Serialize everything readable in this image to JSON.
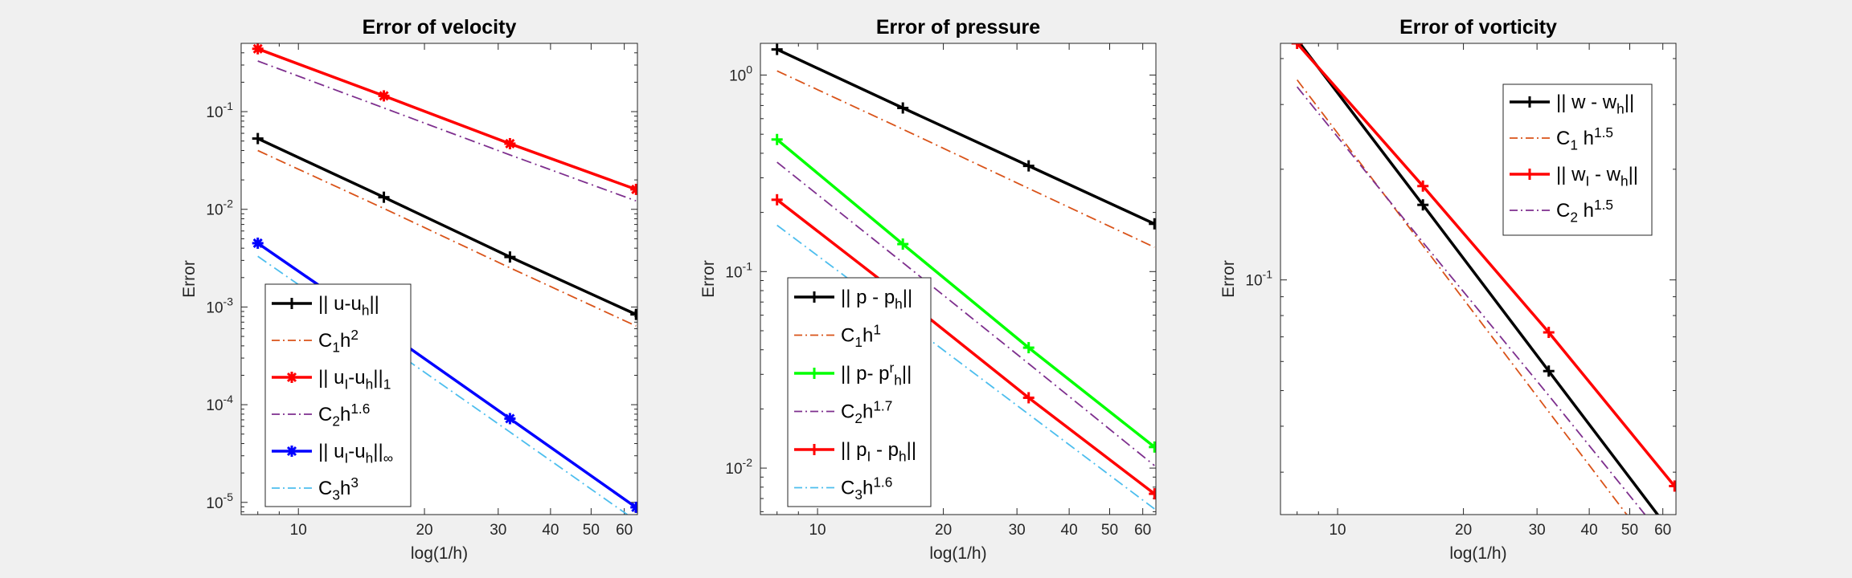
{
  "figure": {
    "background": "#f0f0f0"
  },
  "chart_data": [
    {
      "type": "line",
      "title": "Error of velocity",
      "xlabel": "log(1/h)",
      "ylabel": "Error",
      "xscale": "log",
      "yscale": "log",
      "xlim": [
        7.3,
        64.5
      ],
      "ylim": [
        7.5e-06,
        0.5
      ],
      "xticks": [
        10,
        20,
        30,
        40,
        50,
        60
      ],
      "yticks": [
        1e-05,
        0.0001,
        0.001,
        0.01,
        0.1
      ],
      "ytick_labels": [
        [
          "10",
          "-5"
        ],
        [
          "10",
          "-4"
        ],
        [
          "10",
          "-3"
        ],
        [
          "10",
          "-2"
        ],
        [
          "10",
          "-1"
        ]
      ],
      "grid": false,
      "legend_position": "bottom-left",
      "series": [
        {
          "name": "|| u-u_h||",
          "x": [
            8,
            16,
            32,
            64
          ],
          "y": [
            0.053,
            0.0133,
            0.00325,
            0.00084
          ],
          "color": "#000000",
          "style": "solid",
          "marker": "plus",
          "width": 3.5
        },
        {
          "name": "C_1h^2",
          "x": [
            8,
            16,
            32,
            64
          ],
          "y": [
            0.04,
            0.0102,
            0.00252,
            0.00064
          ],
          "color": "#d95319",
          "style": "dashdot",
          "marker": "none",
          "width": 1.8
        },
        {
          "name": "|| u_I-u_h||_1",
          "x": [
            8,
            16,
            32,
            64
          ],
          "y": [
            0.44,
            0.145,
            0.047,
            0.016
          ],
          "color": "#ff0000",
          "style": "solid",
          "marker": "asterisk",
          "width": 3.5
        },
        {
          "name": "C_2h^1.6",
          "x": [
            8,
            16,
            32,
            64
          ],
          "y": [
            0.33,
            0.109,
            0.036,
            0.0122
          ],
          "color": "#7e2f8e",
          "style": "dashdot",
          "marker": "none",
          "width": 1.8
        },
        {
          "name": "|| u_I-u_h||_∞",
          "x": [
            8,
            16,
            32,
            64
          ],
          "y": [
            0.0045,
            0.00058,
            7.2e-05,
            8.9e-06
          ],
          "color": "#0000ff",
          "style": "solid",
          "marker": "asterisk",
          "width": 3.5
        },
        {
          "name": "C_3h^3",
          "x": [
            8,
            16,
            32,
            64
          ],
          "y": [
            0.0033,
            0.00042,
            5.25e-05,
            6.5e-06
          ],
          "color": "#4dbeee",
          "style": "dashdot",
          "marker": "none",
          "width": 1.8
        }
      ]
    },
    {
      "type": "line",
      "title": "Error of pressure",
      "xlabel": "log(1/h)",
      "ylabel": "Error",
      "xscale": "log",
      "yscale": "log",
      "xlim": [
        7.3,
        64.5
      ],
      "ylim": [
        0.0058,
        1.45
      ],
      "xticks": [
        10,
        20,
        30,
        40,
        50,
        60
      ],
      "yticks": [
        0.01,
        0.1,
        1
      ],
      "ytick_labels": [
        [
          "10",
          "-2"
        ],
        [
          "10",
          "-1"
        ],
        [
          "10",
          "0"
        ]
      ],
      "grid": false,
      "legend_position": "bottom-left",
      "series": [
        {
          "name": "|| p - p_h||",
          "x": [
            8,
            16,
            32,
            64
          ],
          "y": [
            1.35,
            0.68,
            0.345,
            0.175
          ],
          "color": "#000000",
          "style": "solid",
          "marker": "plus",
          "width": 3.5
        },
        {
          "name": "C_1h^1",
          "x": [
            8,
            16,
            32,
            64
          ],
          "y": [
            1.05,
            0.53,
            0.265,
            0.133
          ],
          "color": "#d95319",
          "style": "dashdot",
          "marker": "none",
          "width": 1.8
        },
        {
          "name": "|| p- p^r_h||",
          "x": [
            8,
            16,
            32,
            64
          ],
          "y": [
            0.47,
            0.138,
            0.041,
            0.0128
          ],
          "color": "#00ff00",
          "style": "solid",
          "marker": "plus",
          "width": 3.5
        },
        {
          "name": "C_2h^1.7",
          "x": [
            8,
            16,
            32,
            64
          ],
          "y": [
            0.36,
            0.111,
            0.034,
            0.0103
          ],
          "color": "#7e2f8e",
          "style": "dashdot",
          "marker": "none",
          "width": 1.8
        },
        {
          "name": "|| p_I - p_h||",
          "x": [
            8,
            16,
            32,
            64
          ],
          "y": [
            0.232,
            0.074,
            0.0228,
            0.0074
          ],
          "color": "#ff0000",
          "style": "solid",
          "marker": "plus",
          "width": 3.5
        },
        {
          "name": "C_3h^1.6",
          "x": [
            8,
            16,
            32,
            64
          ],
          "y": [
            0.172,
            0.057,
            0.0188,
            0.0062
          ],
          "color": "#4dbeee",
          "style": "dashdot",
          "marker": "none",
          "width": 1.8
        }
      ]
    },
    {
      "type": "line",
      "title": "Error of vorticity",
      "xlabel": "log(1/h)",
      "ylabel": "Error",
      "xscale": "log",
      "yscale": "log",
      "xlim": [
        7.3,
        64.5
      ],
      "ylim": [
        0.023,
        0.44
      ],
      "xticks": [
        10,
        20,
        30,
        40,
        50,
        60
      ],
      "yticks": [
        0.1
      ],
      "ytick_labels": [
        [
          "10",
          "-1"
        ]
      ],
      "grid": false,
      "legend_position": "top-right",
      "series": [
        {
          "name": "|| w - w_h||",
          "x": [
            8,
            16,
            32,
            64
          ],
          "y": [
            0.45,
            0.16,
            0.0565,
            0.02
          ],
          "color": "#000000",
          "style": "solid",
          "marker": "plus",
          "width": 3.5
        },
        {
          "name": "C_1 h^1.5",
          "x": [
            8,
            16,
            32,
            64
          ],
          "y": [
            0.35,
            0.124,
            0.0438,
            0.0155
          ],
          "color": "#d95319",
          "style": "dashdot",
          "marker": "none",
          "width": 1.8
        },
        {
          "name": "|| w_I - w_h||",
          "x": [
            8,
            16,
            32,
            64
          ],
          "y": [
            0.44,
            0.18,
            0.072,
            0.0275
          ],
          "color": "#ff0000",
          "style": "solid",
          "marker": "plus",
          "width": 3.5
        },
        {
          "name": "C_2 h^1.5",
          "x": [
            8,
            16,
            32,
            64
          ],
          "y": [
            0.335,
            0.1265,
            0.0485,
            0.0183
          ],
          "color": "#7e2f8e",
          "style": "dashdot",
          "marker": "none",
          "width": 1.8
        }
      ]
    }
  ]
}
